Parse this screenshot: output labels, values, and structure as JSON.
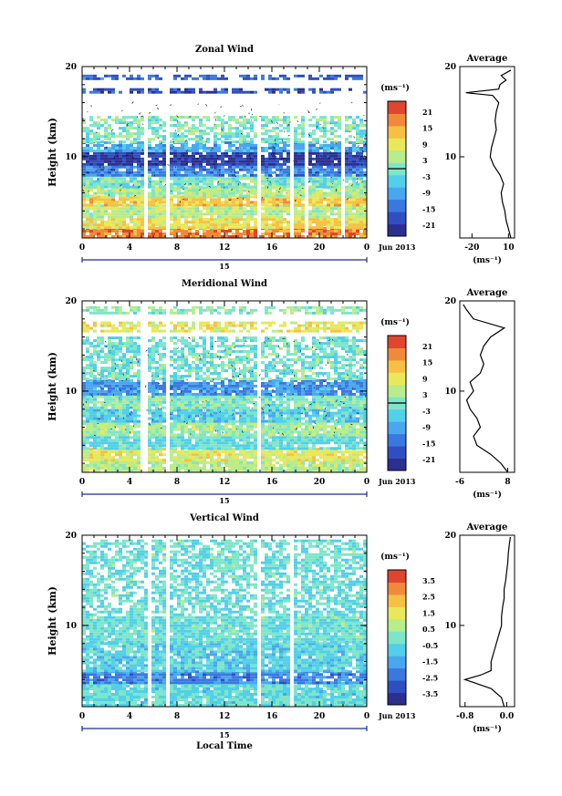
{
  "page": {
    "date_label": "Jun 2013",
    "x_axis_title": "Local Time",
    "unit_label": "(ms⁻¹)",
    "average_title": "Average",
    "day_label": "15"
  },
  "colors": {
    "colormap": [
      "#2b2f8f",
      "#2f4fc0",
      "#3a78e0",
      "#4aa6ef",
      "#52cfe9",
      "#7ee6c8",
      "#b8ec8c",
      "#e8e85a",
      "#f6c142",
      "#f08a3a",
      "#e0452f"
    ],
    "zonal_bg_layers": [
      "#e8541f",
      "#f5c030",
      "#a8e878",
      "#52cfe9",
      "#2a35a8",
      "#3a8fe0"
    ],
    "frame": "#000000",
    "day_bar": "#1f2f8f"
  },
  "chart_data": [
    {
      "type": "heatmap",
      "title": "Zonal Wind",
      "xlabel": "",
      "ylabel": "Height (km)",
      "xlim": [
        0,
        24
      ],
      "ylim": [
        1,
        20
      ],
      "x_ticks": [
        "0",
        "4",
        "8",
        "12",
        "16",
        "20",
        "0"
      ],
      "y_ticks": [
        "10",
        "20"
      ],
      "colorbar": {
        "min": -24,
        "max": 24,
        "ticks": [
          "21",
          "15",
          "9",
          "3",
          "-3",
          "-9",
          "-15",
          "-21"
        ]
      },
      "bands": [
        {
          "h0": 1.0,
          "h1": 2.0,
          "v": 18
        },
        {
          "h0": 2.0,
          "h1": 3.2,
          "v": 10
        },
        {
          "h0": 3.2,
          "h1": 4.5,
          "v": 5
        },
        {
          "h0": 4.5,
          "h1": 5.5,
          "v": 12
        },
        {
          "h0": 5.5,
          "h1": 6.5,
          "v": 4
        },
        {
          "h0": 6.5,
          "h1": 7.8,
          "v": 0
        },
        {
          "h0": 7.8,
          "h1": 9.0,
          "v": -12
        },
        {
          "h0": 9.0,
          "h1": 10.5,
          "v": -20
        },
        {
          "h0": 10.5,
          "h1": 11.5,
          "v": -8
        },
        {
          "h0": 11.5,
          "h1": 14.5,
          "v": 0
        },
        {
          "h0": 17.0,
          "h1": 17.6,
          "v": -18
        },
        {
          "h0": 18.5,
          "h1": 19.0,
          "v": -15
        }
      ],
      "gaps": [
        [
          5.2,
          5.5
        ],
        [
          7.0,
          7.3
        ],
        [
          14.6,
          15.0
        ],
        [
          17.5,
          17.8
        ],
        [
          18.7,
          18.9
        ],
        [
          21.7,
          21.9
        ],
        [
          22.8,
          23.0
        ]
      ],
      "average": {
        "xlim": [
          -30,
          15
        ],
        "x_ticks": [
          "-20",
          "10"
        ],
        "y_ticks": [
          "10",
          "20"
        ],
        "profile": [
          [
            12,
            1
          ],
          [
            10,
            2
          ],
          [
            8,
            3
          ],
          [
            7,
            4
          ],
          [
            5,
            5
          ],
          [
            4,
            6
          ],
          [
            6,
            7
          ],
          [
            3,
            8
          ],
          [
            -2,
            9
          ],
          [
            -5,
            10
          ],
          [
            -4,
            11
          ],
          [
            -2,
            12
          ],
          [
            0,
            13
          ],
          [
            -1,
            14
          ],
          [
            0,
            15
          ],
          [
            2,
            16
          ],
          [
            -3,
            16.8
          ],
          [
            -25,
            17.1
          ],
          [
            2,
            17.5
          ],
          [
            3,
            18
          ],
          [
            8,
            18.5
          ],
          [
            4,
            19
          ],
          [
            12,
            19.6
          ]
        ]
      }
    },
    {
      "type": "heatmap",
      "title": "Meridional Wind",
      "xlabel": "",
      "ylabel": "Height (km)",
      "xlim": [
        0,
        24
      ],
      "ylim": [
        1,
        20
      ],
      "x_ticks": [
        "0",
        "4",
        "8",
        "12",
        "16",
        "20",
        "0"
      ],
      "y_ticks": [
        "10",
        "20"
      ],
      "colorbar": {
        "min": -24,
        "max": 24,
        "ticks": [
          "21",
          "15",
          "9",
          "3",
          "-3",
          "-9",
          "-15",
          "-21"
        ]
      },
      "bands": [
        {
          "h0": 1.0,
          "h1": 2.2,
          "v": 4
        },
        {
          "h0": 2.2,
          "h1": 3.5,
          "v": 8
        },
        {
          "h0": 3.5,
          "h1": 5.0,
          "v": -2
        },
        {
          "h0": 5.0,
          "h1": 6.5,
          "v": 3
        },
        {
          "h0": 6.5,
          "h1": 8.0,
          "v": -4
        },
        {
          "h0": 8.0,
          "h1": 9.5,
          "v": 0
        },
        {
          "h0": 9.5,
          "h1": 11.2,
          "v": -10
        },
        {
          "h0": 11.2,
          "h1": 16.0,
          "v": -1
        },
        {
          "h0": 16.5,
          "h1": 17.5,
          "v": 9
        },
        {
          "h0": 18.5,
          "h1": 19.2,
          "v": 1
        }
      ],
      "gaps": [
        [
          4.9,
          5.3
        ],
        [
          7.0,
          7.2
        ],
        [
          14.5,
          14.9
        ],
        [
          17.3,
          17.5
        ],
        [
          18.8,
          19.0
        ],
        [
          21.6,
          21.8
        ],
        [
          22.8,
          23.0
        ]
      ],
      "average": {
        "xlim": [
          -6,
          10
        ],
        "x_ticks": [
          "-6",
          "8"
        ],
        "y_ticks": [
          "10",
          "20"
        ],
        "profile": [
          [
            8,
            1
          ],
          [
            6,
            2
          ],
          [
            3,
            3
          ],
          [
            -1,
            4
          ],
          [
            -2,
            5
          ],
          [
            0,
            6
          ],
          [
            -1,
            7
          ],
          [
            -3,
            8
          ],
          [
            -4,
            9
          ],
          [
            -2,
            10
          ],
          [
            -3,
            11
          ],
          [
            0,
            12
          ],
          [
            1,
            13
          ],
          [
            0,
            14
          ],
          [
            1,
            15
          ],
          [
            3,
            16
          ],
          [
            7,
            17
          ],
          [
            -2,
            18
          ],
          [
            -4,
            19
          ],
          [
            -5,
            19.6
          ]
        ]
      }
    },
    {
      "type": "heatmap",
      "title": "Vertical Wind",
      "xlabel": "Local Time",
      "ylabel": "Height (km)",
      "xlim": [
        0,
        24
      ],
      "ylim": [
        1,
        20
      ],
      "x_ticks": [
        "0",
        "4",
        "8",
        "12",
        "16",
        "20",
        "0"
      ],
      "y_ticks": [
        "10",
        "20"
      ],
      "colorbar": {
        "min": -4,
        "max": 4,
        "ticks": [
          "3.5",
          "2.5",
          "1.5",
          "0.5",
          "-0.5",
          "-1.5",
          "-2.5",
          "-3.5"
        ]
      },
      "bands": [
        {
          "h0": 1.0,
          "h1": 3.5,
          "v": -0.4
        },
        {
          "h0": 3.5,
          "h1": 4.8,
          "v": -2.0
        },
        {
          "h0": 4.8,
          "h1": 8.0,
          "v": -0.6
        },
        {
          "h0": 8.0,
          "h1": 19.5,
          "v": -0.3
        }
      ],
      "gaps": [
        [
          5.3,
          5.6
        ],
        [
          7.0,
          7.3
        ],
        [
          14.7,
          15.0
        ],
        [
          17.3,
          17.6
        ],
        [
          18.8,
          19.0
        ],
        [
          21.6,
          21.8
        ],
        [
          22.8,
          23.0
        ]
      ],
      "average": {
        "xlim": [
          -0.9,
          0.15
        ],
        "x_ticks": [
          "-0.8",
          "0.0"
        ],
        "y_ticks": [
          "10",
          "20"
        ],
        "profile": [
          [
            -0.05,
            1
          ],
          [
            -0.1,
            2
          ],
          [
            -0.3,
            3
          ],
          [
            -0.8,
            4
          ],
          [
            -0.5,
            4.5
          ],
          [
            -0.3,
            5
          ],
          [
            -0.3,
            6
          ],
          [
            -0.25,
            7
          ],
          [
            -0.2,
            8
          ],
          [
            -0.15,
            9
          ],
          [
            -0.1,
            10
          ],
          [
            -0.1,
            11
          ],
          [
            -0.08,
            12
          ],
          [
            -0.05,
            13
          ],
          [
            -0.05,
            14
          ],
          [
            -0.02,
            15
          ],
          [
            0.0,
            16
          ],
          [
            0.02,
            17
          ],
          [
            0.03,
            18
          ],
          [
            0.05,
            19
          ],
          [
            0.07,
            19.8
          ]
        ]
      }
    }
  ]
}
